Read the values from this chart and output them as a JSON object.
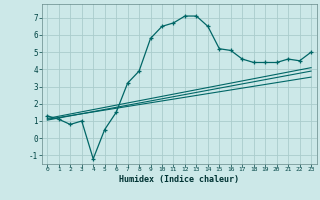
{
  "xlabel": "Humidex (Indice chaleur)",
  "xlim": [
    -0.5,
    23.5
  ],
  "ylim": [
    -1.5,
    7.8
  ],
  "yticks": [
    -1,
    0,
    1,
    2,
    3,
    4,
    5,
    6,
    7
  ],
  "xticks": [
    0,
    1,
    2,
    3,
    4,
    5,
    6,
    7,
    8,
    9,
    10,
    11,
    12,
    13,
    14,
    15,
    16,
    17,
    18,
    19,
    20,
    21,
    22,
    23
  ],
  "bg_color": "#cce8e8",
  "grid_color": "#aacccc",
  "line_color": "#006666",
  "line1_x": [
    0,
    1,
    2,
    3,
    4,
    5,
    6,
    7,
    8,
    9,
    10,
    11,
    12,
    13,
    14,
    15,
    16,
    17,
    18,
    19,
    20,
    21,
    22,
    23
  ],
  "line1_y": [
    1.3,
    1.1,
    0.8,
    1.0,
    -1.2,
    0.5,
    1.5,
    3.2,
    3.9,
    5.8,
    6.5,
    6.7,
    7.1,
    7.1,
    6.5,
    5.2,
    5.1,
    4.6,
    4.4,
    4.4,
    4.4,
    4.6,
    4.5,
    5.0
  ],
  "line2_x": [
    0,
    23
  ],
  "line2_y": [
    1.05,
    3.9
  ],
  "line3_x": [
    0,
    23
  ],
  "line3_y": [
    1.1,
    3.55
  ],
  "line4_x": [
    0,
    23
  ],
  "line4_y": [
    1.15,
    4.1
  ]
}
